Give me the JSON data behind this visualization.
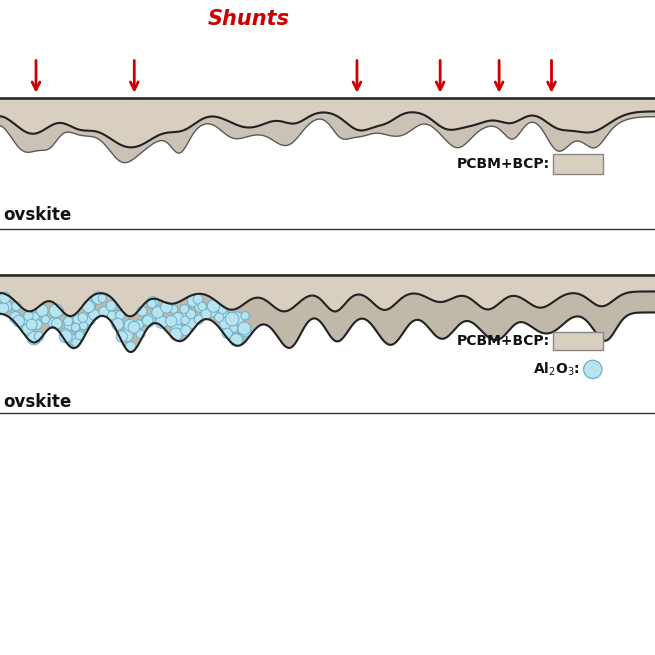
{
  "background_color": "#ffffff",
  "pcbm_fill": "#d8cfc0",
  "pcbm_color": "#c0b8a8",
  "al2o3_color": "#b8e4f0",
  "al2o3_border": "#6ab0cc",
  "line_color": "#222222",
  "shunt_label_color": "#cc0000",
  "arrow_color": "#cc0000",
  "text_color": "#111111",
  "panel_label_pcbm": "PCBM+BCP:",
  "shunts_label": "Shunts",
  "perovskite_label": "ovskite"
}
